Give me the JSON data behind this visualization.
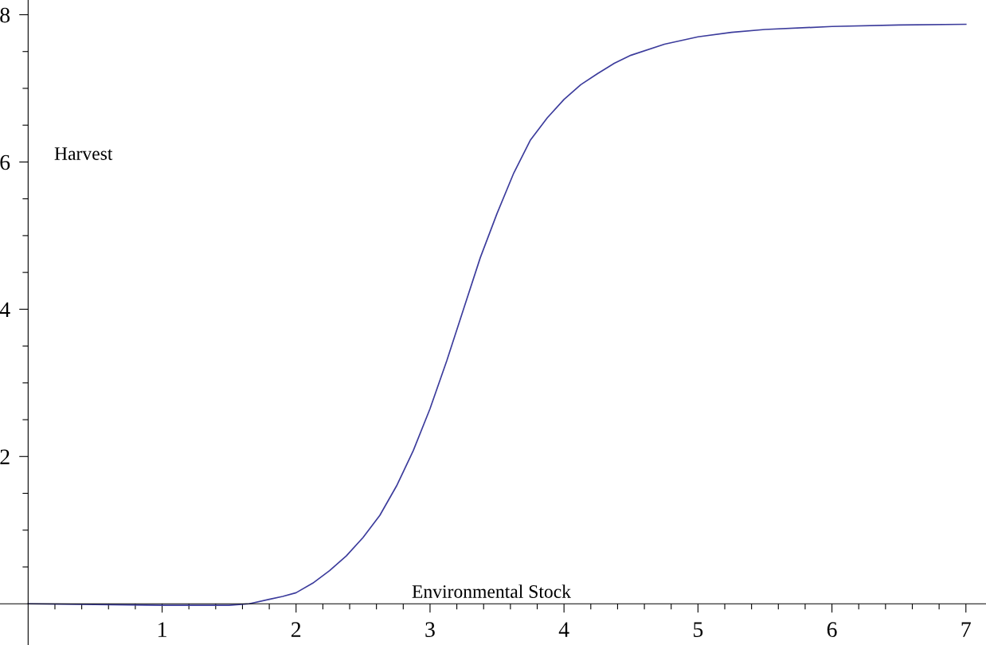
{
  "chart_data": {
    "type": "line",
    "xlabel": "Environmental Stock",
    "ylabel": "Harvest",
    "x": [
      0,
      0.5,
      1.0,
      1.25,
      1.5,
      1.65,
      1.8,
      1.9,
      2.0,
      2.125,
      2.25,
      2.375,
      2.5,
      2.625,
      2.75,
      2.875,
      3.0,
      3.125,
      3.25,
      3.375,
      3.5,
      3.625,
      3.75,
      3.875,
      4.0,
      4.125,
      4.25,
      4.375,
      4.5,
      4.75,
      5.0,
      5.25,
      5.5,
      6.0,
      6.5,
      7.0
    ],
    "series": [
      {
        "color": "#3c3c9c",
        "values": [
          0,
          -0.01,
          -0.02,
          -0.02,
          -0.02,
          0.0,
          0.06,
          0.1,
          0.15,
          0.28,
          0.45,
          0.65,
          0.9,
          1.2,
          1.6,
          2.08,
          2.65,
          3.3,
          4.0,
          4.7,
          5.3,
          5.85,
          6.3,
          6.6,
          6.85,
          7.05,
          7.2,
          7.34,
          7.45,
          7.6,
          7.7,
          7.76,
          7.8,
          7.84,
          7.86,
          7.87
        ]
      }
    ],
    "xlim": [
      -0.21,
      7.15
    ],
    "ylim": [
      -0.56,
      8.2
    ],
    "xticks": [
      {
        "value": 0.2,
        "label": null
      },
      {
        "value": 0.4,
        "label": null
      },
      {
        "value": 0.6,
        "label": null
      },
      {
        "value": 0.8,
        "label": null
      },
      1,
      {
        "value": 1.2,
        "label": null
      },
      {
        "value": 1.4,
        "label": null
      },
      {
        "value": 1.6,
        "label": null
      },
      {
        "value": 1.8,
        "label": null
      },
      2,
      {
        "value": 2.2,
        "label": null
      },
      {
        "value": 2.4,
        "label": null
      },
      {
        "value": 2.6,
        "label": null
      },
      {
        "value": 2.8,
        "label": null
      },
      3,
      {
        "value": 3.2,
        "label": null
      },
      {
        "value": 3.4,
        "label": null
      },
      {
        "value": 3.6,
        "label": null
      },
      {
        "value": 3.8,
        "label": null
      },
      4,
      {
        "value": 4.2,
        "label": null
      },
      {
        "value": 4.4,
        "label": null
      },
      {
        "value": 4.6,
        "label": null
      },
      {
        "value": 4.8,
        "label": null
      },
      5,
      {
        "value": 5.2,
        "label": null
      },
      {
        "value": 5.4,
        "label": null
      },
      {
        "value": 5.6,
        "label": null
      },
      {
        "value": 5.8,
        "label": null
      },
      6,
      {
        "value": 6.2,
        "label": null
      },
      {
        "value": 6.4,
        "label": null
      },
      {
        "value": 6.6,
        "label": null
      },
      {
        "value": 6.8,
        "label": null
      },
      7
    ],
    "yticks": [
      {
        "value": 0.5,
        "label": null
      },
      {
        "value": 1,
        "label": null
      },
      {
        "value": 1.5,
        "label": null
      },
      2,
      {
        "value": 2.5,
        "label": null
      },
      {
        "value": 3,
        "label": null
      },
      {
        "value": 3.5,
        "label": null
      },
      4,
      {
        "value": 4.5,
        "label": null
      },
      {
        "value": 5,
        "label": null
      },
      {
        "value": 5.5,
        "label": null
      },
      6,
      {
        "value": 6.5,
        "label": null
      },
      {
        "value": 7,
        "label": null
      },
      {
        "value": 7.5,
        "label": null
      },
      8
    ],
    "grid": false,
    "marker": "none",
    "line_style": "solid"
  }
}
